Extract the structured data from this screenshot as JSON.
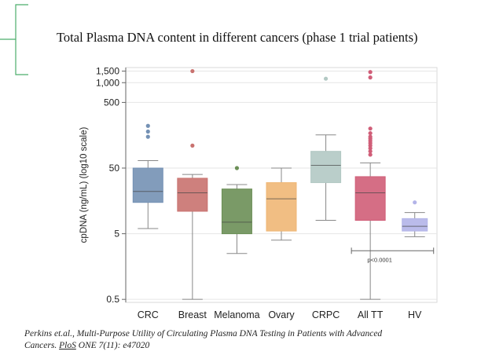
{
  "slide": {
    "title": "Total Plasma DNA  content  in different cancers (phase 1 trial patients)",
    "citation": {
      "line1": "Perkins et.al., Multi-Purpose Utility of Circulating Plasma DNA Testing in Patients with Advanced",
      "line2_prefix": "Cancers. ",
      "journal": "PloS",
      "line2_suffix": " ONE 7(11): e47020"
    }
  },
  "colors": {
    "accent_bracket": "#4cae6c",
    "grid": "#e6e6e6",
    "axis": "#666666",
    "whisker": "#888888",
    "median": "#444444"
  },
  "chart_data": {
    "type": "box",
    "ylabel": "cpDNA (ng/mL) (log10 scale)",
    "yscale": "log10",
    "ylim": [
      0.45,
      1700
    ],
    "yticks": [
      0.5,
      5,
      50,
      500,
      1000,
      1500
    ],
    "ytick_labels": [
      "0.5",
      "5",
      "50",
      "500",
      "1,000",
      "1,500"
    ],
    "annotation": "p<0.0001",
    "annotation_span": [
      "All TT",
      "HV"
    ],
    "groups": [
      {
        "name": "CRC",
        "color": "#7491b4",
        "min": 6,
        "q1": 15,
        "median": 22,
        "q3": 50,
        "max": 65,
        "outliers": [
          150,
          180,
          220
        ]
      },
      {
        "name": "Breast",
        "color": "#c9726f",
        "min": 0.5,
        "q1": 11,
        "median": 21,
        "q3": 35,
        "max": 40,
        "outliers": [
          110,
          1500
        ]
      },
      {
        "name": "Melanoma",
        "color": "#6b8f56",
        "min": 2.5,
        "q1": 5,
        "median": 7.5,
        "q3": 24,
        "max": 28,
        "outliers": [
          50
        ]
      },
      {
        "name": "Ovary",
        "color": "#efb775",
        "min": 4,
        "q1": 5.5,
        "median": 17,
        "q3": 30,
        "max": 50,
        "outliers": []
      },
      {
        "name": "CRPC",
        "color": "#b3c9c4",
        "min": 8,
        "q1": 30,
        "median": 55,
        "q3": 90,
        "max": 160,
        "outliers": [
          1150
        ]
      },
      {
        "name": "All TT",
        "color": "#d05e78",
        "min": 0.5,
        "q1": 8,
        "median": 21,
        "q3": 37,
        "max": 60,
        "outliers": [
          80,
          90,
          100,
          110,
          120,
          130,
          140,
          150,
          170,
          200,
          1200,
          1450
        ]
      },
      {
        "name": "HV",
        "color": "#b3b4e8",
        "min": 4.5,
        "q1": 5.5,
        "median": 6.5,
        "q3": 8.5,
        "max": 10.5,
        "outliers": [
          15
        ]
      }
    ]
  }
}
